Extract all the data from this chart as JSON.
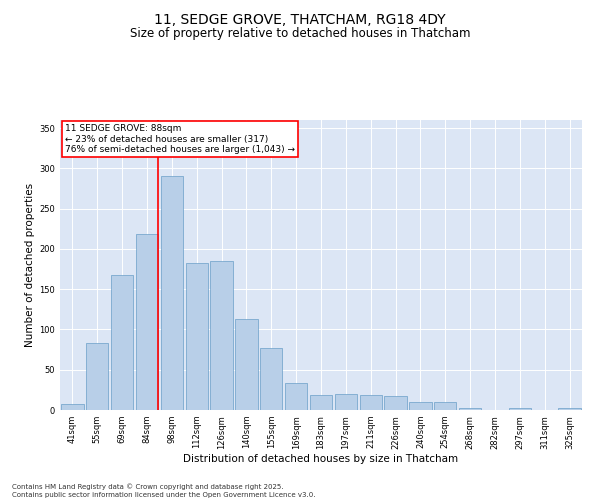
{
  "title": "11, SEDGE GROVE, THATCHAM, RG18 4DY",
  "subtitle": "Size of property relative to detached houses in Thatcham",
  "xlabel": "Distribution of detached houses by size in Thatcham",
  "ylabel": "Number of detached properties",
  "categories": [
    "41sqm",
    "55sqm",
    "69sqm",
    "84sqm",
    "98sqm",
    "112sqm",
    "126sqm",
    "140sqm",
    "155sqm",
    "169sqm",
    "183sqm",
    "197sqm",
    "211sqm",
    "226sqm",
    "240sqm",
    "254sqm",
    "268sqm",
    "282sqm",
    "297sqm",
    "311sqm",
    "325sqm"
  ],
  "values": [
    7,
    83,
    168,
    219,
    290,
    183,
    185,
    113,
    77,
    34,
    19,
    20,
    19,
    18,
    10,
    10,
    3,
    0,
    2,
    0,
    2
  ],
  "bar_color": "#b8cfe8",
  "bar_edge_color": "#6a9fc8",
  "vline_color": "red",
  "vline_pos": 3.45,
  "annotation_text": "11 SEDGE GROVE: 88sqm\n← 23% of detached houses are smaller (317)\n76% of semi-detached houses are larger (1,043) →",
  "annotation_box_color": "#ffffff",
  "annotation_box_edge": "red",
  "ylim": [
    0,
    360
  ],
  "yticks": [
    0,
    50,
    100,
    150,
    200,
    250,
    300,
    350
  ],
  "background_color": "#dce6f5",
  "footer": "Contains HM Land Registry data © Crown copyright and database right 2025.\nContains public sector information licensed under the Open Government Licence v3.0.",
  "title_fontsize": 10,
  "subtitle_fontsize": 8.5,
  "tick_fontsize": 6,
  "ylabel_fontsize": 7.5,
  "xlabel_fontsize": 7.5,
  "annotation_fontsize": 6.5,
  "footer_fontsize": 5
}
